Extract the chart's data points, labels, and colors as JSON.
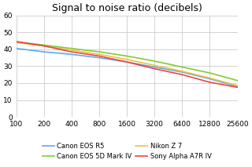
{
  "title": "Signal to noise ratio (decibels)",
  "iso_values": [
    100,
    200,
    400,
    800,
    1600,
    3200,
    6400,
    12800,
    25600
  ],
  "canon_r5": [
    40.5,
    38.5,
    37.0,
    35.0,
    32.5,
    29.5,
    26.5,
    22.5,
    18.0
  ],
  "nikon_z7": [
    44.0,
    42.0,
    39.5,
    37.0,
    34.0,
    30.5,
    27.0,
    23.0,
    18.5
  ],
  "canon_5d4": [
    44.5,
    42.5,
    40.5,
    38.5,
    36.0,
    33.0,
    29.5,
    26.0,
    21.5
  ],
  "sony_a7r4": [
    44.5,
    42.0,
    38.5,
    36.0,
    32.5,
    28.5,
    25.0,
    20.5,
    17.5
  ],
  "colors": {
    "canon_r5": "#5aabee",
    "nikon_z7": "#f0c040",
    "canon_5d4": "#80cc30",
    "sony_a7r4": "#ee4444"
  },
  "legend_labels": {
    "canon_r5": "Canon EOS R5",
    "nikon_z7": "Nikon Z 7",
    "canon_5d4": "Canon EOS 5D Mark IV",
    "sony_a7r4": "Sony Alpha A7R IV"
  },
  "ylim": [
    0,
    60
  ],
  "yticks": [
    0,
    10,
    20,
    30,
    40,
    50,
    60
  ],
  "background_color": "#ffffff",
  "grid_color": "#cccccc",
  "title_fontsize": 9,
  "tick_fontsize": 6.5,
  "legend_fontsize": 6.0
}
